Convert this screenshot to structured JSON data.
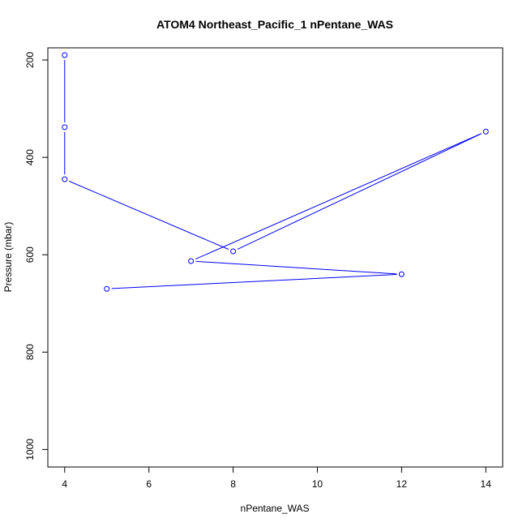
{
  "chart_data": {
    "type": "line",
    "title": "ATOM4 Northeast_Pacific_1 nPentane_WAS",
    "xlabel": "nPentane_WAS",
    "ylabel": "Pressure (mbar)",
    "xlim": [
      3.6,
      14.4
    ],
    "ylim": [
      1036,
      175
    ],
    "y_reversed": true,
    "x_ticks": [
      4,
      6,
      8,
      10,
      12,
      14
    ],
    "y_ticks": [
      200,
      400,
      600,
      800,
      1000
    ],
    "grid": false,
    "series_color": "#0000ff",
    "x": [
      4,
      4,
      4,
      8,
      14,
      7,
      12,
      5
    ],
    "y": [
      190,
      338,
      445,
      593,
      347,
      613,
      640,
      670
    ]
  }
}
